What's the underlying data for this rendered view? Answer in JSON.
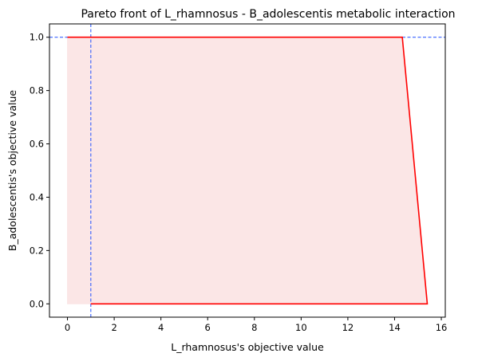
{
  "chart_data": {
    "type": "area",
    "title": "Pareto front of L_rhamnosus - B_adolescentis metabolic interaction",
    "xlabel": "L_rhamnosus's objective value",
    "ylabel": "B_adolescentis's objective value",
    "xlim": [
      -0.77,
      16.17
    ],
    "ylim": [
      -0.05,
      1.05
    ],
    "xticks": [
      0,
      2,
      4,
      6,
      8,
      10,
      12,
      14,
      16
    ],
    "yticks": [
      0.0,
      0.2,
      0.4,
      0.6,
      0.8,
      1.0
    ],
    "xtick_labels": [
      "0",
      "2",
      "4",
      "6",
      "8",
      "10",
      "12",
      "14",
      "16"
    ],
    "ytick_labels": [
      "0.0",
      "0.2",
      "0.4",
      "0.6",
      "0.8",
      "1.0"
    ],
    "grid": false,
    "series": [
      {
        "type": "line",
        "color": "#ff0000",
        "x": [
          1.0,
          15.4,
          14.33,
          0.0
        ],
        "y": [
          0.0,
          0.0,
          1.0,
          1.0
        ]
      }
    ],
    "fill_region": {
      "color": "#fbe6e6",
      "x": [
        0.0,
        15.4,
        14.33,
        0.0
      ],
      "y": [
        0.0,
        0.0,
        1.0,
        1.0
      ]
    },
    "reference_lines": [
      {
        "orientation": "vertical",
        "value": 1.0,
        "color": "#1f4fff",
        "style": "dashed"
      },
      {
        "orientation": "horizontal",
        "value": 1.0,
        "color": "#1f4fff",
        "style": "dashed"
      }
    ]
  }
}
